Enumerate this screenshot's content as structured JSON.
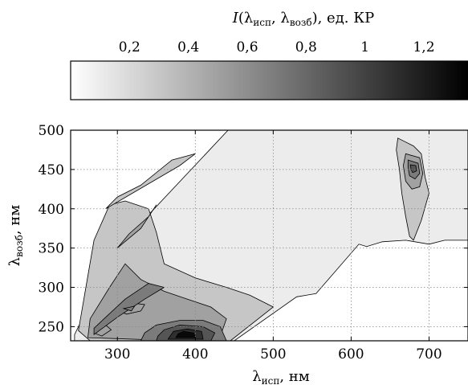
{
  "chart_data": {
    "type": "heatmap",
    "colorbar": {
      "title_main": "I",
      "title_args": "(λ",
      "title_sub1": "исп",
      "title_mid": ", λ",
      "title_sub2": "возб",
      "title_end": "), ед. КР",
      "ticks": [
        "0,2",
        "0,4",
        "0,6",
        "0,8",
        "1",
        "1,2"
      ],
      "tick_values": [
        0.2,
        0.4,
        0.6,
        0.8,
        1.0,
        1.2
      ],
      "range": [
        0,
        1.35
      ],
      "colormap": [
        "#ffffff",
        "#000000"
      ]
    },
    "xaxis": {
      "label": "λ",
      "label_sub": "исп",
      "label_unit": ", нм",
      "ticks": [
        "300",
        "400",
        "500",
        "600",
        "700"
      ],
      "tick_values": [
        300,
        400,
        500,
        600,
        700
      ],
      "range": [
        240,
        750
      ]
    },
    "yaxis": {
      "label": "λ",
      "label_sub": "возб",
      "label_unit": ", нм",
      "ticks": [
        "250",
        "300",
        "350",
        "400",
        "450",
        "500"
      ],
      "tick_values": [
        250,
        300,
        350,
        400,
        450,
        500
      ],
      "range": [
        232,
        500
      ]
    },
    "grid": true,
    "regions": [
      {
        "level": 0.1,
        "points": [
          [
            245,
            232
          ],
          [
            450,
            232
          ],
          [
            530,
            288
          ],
          [
            555,
            292
          ],
          [
            610,
            355
          ],
          [
            620,
            352
          ],
          [
            640,
            358
          ],
          [
            670,
            360
          ],
          [
            700,
            355
          ],
          [
            720,
            360
          ],
          [
            750,
            360
          ],
          [
            750,
            500
          ],
          [
            500,
            500
          ],
          [
            442,
            500
          ],
          [
            300,
            350
          ],
          [
            245,
            240
          ]
        ]
      },
      {
        "level": 0.3,
        "points": [
          [
            265,
            232
          ],
          [
            445,
            232
          ],
          [
            500,
            275
          ],
          [
            470,
            290
          ],
          [
            440,
            300
          ],
          [
            400,
            312
          ],
          [
            360,
            330
          ],
          [
            350,
            370
          ],
          [
            340,
            400
          ],
          [
            310,
            410
          ],
          [
            290,
            405
          ],
          [
            270,
            360
          ],
          [
            250,
            245
          ]
        ]
      },
      {
        "level": 0.3,
        "points": [
          [
            285,
            400
          ],
          [
            380,
            455
          ],
          [
            400,
            470
          ],
          [
            370,
            462
          ],
          [
            330,
            430
          ],
          [
            300,
            415
          ]
        ]
      },
      {
        "level": 0.5,
        "points": [
          [
            262,
            236
          ],
          [
            380,
            232
          ],
          [
            430,
            232
          ],
          [
            440,
            260
          ],
          [
            420,
            275
          ],
          [
            390,
            285
          ],
          [
            360,
            295
          ],
          [
            330,
            310
          ],
          [
            310,
            330
          ],
          [
            290,
            300
          ],
          [
            265,
            260
          ]
        ]
      },
      {
        "level": 0.5,
        "points": [
          [
            300,
            350
          ],
          [
            330,
            375
          ],
          [
            350,
            405
          ],
          [
            340,
            390
          ],
          [
            315,
            368
          ]
        ]
      },
      {
        "level": 0.7,
        "points": [
          [
            270,
            240
          ],
          [
            300,
            262
          ],
          [
            335,
            285
          ],
          [
            360,
            300
          ],
          [
            340,
            305
          ],
          [
            310,
            285
          ],
          [
            285,
            262
          ],
          [
            270,
            248
          ]
        ]
      },
      {
        "level": 0.7,
        "points": [
          [
            330,
            232
          ],
          [
            440,
            232
          ],
          [
            432,
            250
          ],
          [
            410,
            258
          ],
          [
            380,
            258
          ],
          [
            350,
            252
          ],
          [
            335,
            242
          ]
        ]
      },
      {
        "level": 0.9,
        "points": [
          [
            350,
            232
          ],
          [
            420,
            232
          ],
          [
            425,
            242
          ],
          [
            410,
            250
          ],
          [
            380,
            252
          ],
          [
            360,
            246
          ],
          [
            352,
            238
          ]
        ]
      },
      {
        "level": 1.1,
        "points": [
          [
            365,
            234
          ],
          [
            410,
            234
          ],
          [
            408,
            244
          ],
          [
            390,
            247
          ],
          [
            372,
            244
          ]
        ]
      },
      {
        "level": 1.3,
        "points": [
          [
            375,
            236
          ],
          [
            400,
            236
          ],
          [
            398,
            242
          ],
          [
            385,
            244
          ],
          [
            378,
            241
          ]
        ]
      },
      {
        "level": 0.5,
        "points": [
          [
            300,
            270
          ],
          [
            320,
            280
          ],
          [
            335,
            278
          ],
          [
            330,
            270
          ],
          [
            312,
            266
          ]
        ]
      },
      {
        "level": 0.7,
        "points": [
          [
            308,
            273
          ],
          [
            322,
            276
          ],
          [
            318,
            270
          ]
        ]
      },
      {
        "level": 0.5,
        "points": [
          [
            270,
            242
          ],
          [
            285,
            252
          ],
          [
            292,
            246
          ],
          [
            280,
            238
          ]
        ]
      },
      {
        "level": 0.3,
        "points": [
          [
            660,
            490
          ],
          [
            680,
            480
          ],
          [
            690,
            470
          ],
          [
            695,
            440
          ],
          [
            700,
            420
          ],
          [
            690,
            385
          ],
          [
            680,
            360
          ],
          [
            675,
            365
          ],
          [
            670,
            390
          ],
          [
            665,
            420
          ],
          [
            662,
            450
          ],
          [
            658,
            475
          ]
        ]
      },
      {
        "level": 0.5,
        "points": [
          [
            670,
            470
          ],
          [
            688,
            465
          ],
          [
            692,
            445
          ],
          [
            688,
            428
          ],
          [
            678,
            425
          ],
          [
            670,
            435
          ],
          [
            667,
            455
          ]
        ]
      },
      {
        "level": 0.7,
        "points": [
          [
            673,
            462
          ],
          [
            686,
            458
          ],
          [
            688,
            445
          ],
          [
            682,
            438
          ],
          [
            675,
            442
          ],
          [
            673,
            452
          ]
        ]
      },
      {
        "level": 0.9,
        "points": [
          [
            676,
            456
          ],
          [
            683,
            455
          ],
          [
            684,
            448
          ],
          [
            679,
            446
          ],
          [
            677,
            450
          ]
        ]
      }
    ]
  }
}
